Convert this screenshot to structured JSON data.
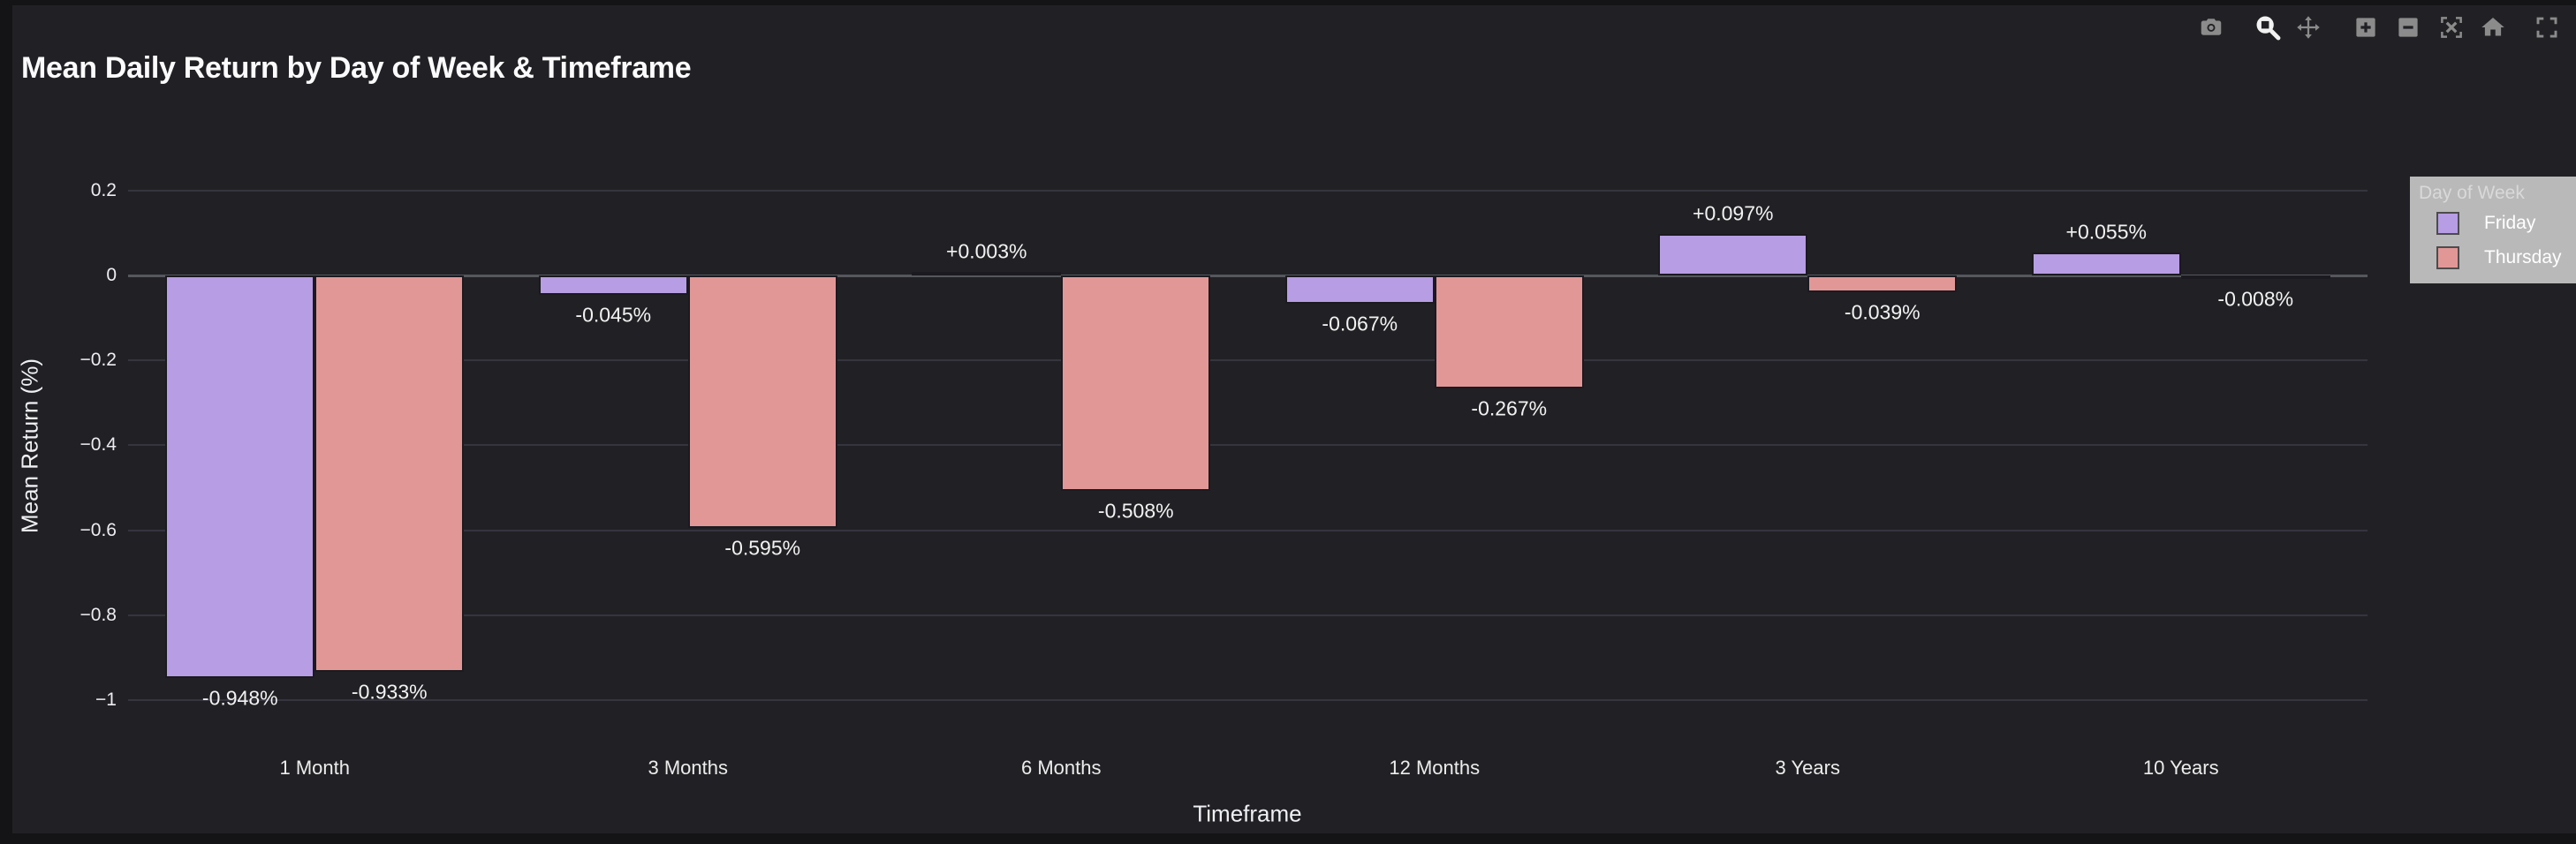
{
  "title": "Mean Daily Return by Day of Week & Timeframe",
  "modebar": {
    "buttons": [
      "camera",
      "zoom",
      "pan",
      "zoom-in",
      "zoom-out",
      "autoscale",
      "reset-home",
      "fullscreen"
    ],
    "active_button": "zoom"
  },
  "legend": {
    "title": "Day of Week",
    "items": [
      {
        "label": "Friday",
        "color": "#b79de3"
      },
      {
        "label": "Thursday",
        "color": "#e29797"
      }
    ]
  },
  "chart_data": {
    "type": "bar",
    "title": "Mean Daily Return by Day of Week & Timeframe",
    "xlabel": "Timeframe",
    "ylabel": "Mean Return (%)",
    "categories": [
      "1 Month",
      "3 Months",
      "6 Months",
      "12 Months",
      "3 Years",
      "10 Years"
    ],
    "series": [
      {
        "name": "Friday",
        "color": "#b79de3",
        "values": [
          -0.948,
          -0.045,
          0.003,
          -0.067,
          0.097,
          0.055
        ],
        "labels": [
          "-0.948%",
          "-0.045%",
          "+0.003%",
          "-0.067%",
          "+0.097%",
          "+0.055%"
        ]
      },
      {
        "name": "Thursday",
        "color": "#e29797",
        "values": [
          -0.933,
          -0.595,
          -0.508,
          -0.267,
          -0.039,
          -0.008
        ],
        "labels": [
          "-0.933%",
          "-0.595%",
          "-0.508%",
          "-0.267%",
          "-0.039%",
          "-0.008%"
        ]
      }
    ],
    "yticks": {
      "values": [
        0.2,
        0,
        -0.2,
        -0.4,
        -0.6,
        -0.8,
        -1
      ],
      "labels": [
        "0.2",
        "0",
        "−0.2",
        "−0.4",
        "−0.6",
        "−0.8",
        "−1"
      ]
    },
    "ylim": [
      -1.03,
      0.24
    ],
    "grid": true,
    "legend_position": "right",
    "colors": {
      "background": "#212125",
      "page_background": "#141416",
      "gridline": "#34353f",
      "zero_line": "#56575d",
      "text": "#f2f2f2"
    }
  }
}
